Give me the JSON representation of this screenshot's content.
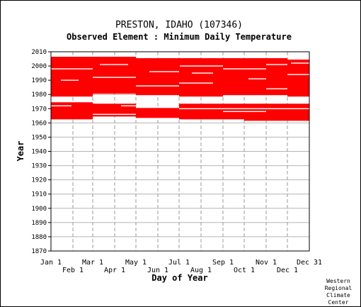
{
  "chart_data": {
    "type": "heatmap",
    "title": "PRESTON, IDAHO   (107346)",
    "subtitle": "Observed Element : Minimum Daily Temperature",
    "xlabel": "Day of Year",
    "ylabel": "Year",
    "xlim": [
      1,
      366
    ],
    "ylim": [
      1870,
      2010
    ],
    "y_ticks": [
      1870,
      1880,
      1890,
      1900,
      1910,
      1920,
      1930,
      1940,
      1950,
      1960,
      1970,
      1980,
      1990,
      2000,
      2010
    ],
    "x_ticks_upper": [
      {
        "label": "Jan 1",
        "day": 1
      },
      {
        "label": "Mar 1",
        "day": 60
      },
      {
        "label": "May 1",
        "day": 121
      },
      {
        "label": "Jul 1",
        "day": 182
      },
      {
        "label": "Sep 1",
        "day": 244
      },
      {
        "label": "Nov 1",
        "day": 305
      },
      {
        "label": "Dec 31",
        "day": 366
      }
    ],
    "x_ticks_lower": [
      {
        "label": "Feb 1",
        "day": 32
      },
      {
        "label": "Apr 1",
        "day": 91
      },
      {
        "label": "Jun 1",
        "day": 152
      },
      {
        "label": "Aug 1",
        "day": 213
      },
      {
        "label": "Oct 1",
        "day": 274
      },
      {
        "label": "Dec 1",
        "day": 335
      }
    ],
    "grid": true,
    "data_color": "#ff0000",
    "blocks": [
      {
        "day_start": 1,
        "day_end": 60,
        "year_start": 1963,
        "year_end": 1974
      },
      {
        "day_start": 60,
        "day_end": 121,
        "year_start": 1965,
        "year_end": 1973
      },
      {
        "day_start": 121,
        "day_end": 182,
        "year_start": 1964,
        "year_end": 1970
      },
      {
        "day_start": 182,
        "day_end": 274,
        "year_start": 1963,
        "year_end": 1973
      },
      {
        "day_start": 274,
        "day_end": 366,
        "year_start": 1962,
        "year_end": 1973
      },
      {
        "day_start": 1,
        "day_end": 60,
        "year_start": 1979,
        "year_end": 2006
      },
      {
        "day_start": 60,
        "day_end": 121,
        "year_start": 1981,
        "year_end": 2006
      },
      {
        "day_start": 121,
        "day_end": 182,
        "year_start": 1980,
        "year_end": 2005
      },
      {
        "day_start": 182,
        "day_end": 244,
        "year_start": 1979,
        "year_end": 2005
      },
      {
        "day_start": 244,
        "day_end": 305,
        "year_start": 1980,
        "year_end": 2005
      },
      {
        "day_start": 305,
        "day_end": 335,
        "year_start": 1980,
        "year_end": 2005
      },
      {
        "day_start": 335,
        "day_end": 366,
        "year_start": 1979,
        "year_end": 2004
      }
    ],
    "missing": [
      {
        "day_start": 1,
        "day_end": 60,
        "year": 1998
      },
      {
        "day_start": 15,
        "day_end": 40,
        "year": 1990
      },
      {
        "day_start": 70,
        "day_end": 110,
        "year": 2001
      },
      {
        "day_start": 60,
        "day_end": 121,
        "year": 1992
      },
      {
        "day_start": 121,
        "day_end": 182,
        "year": 1986
      },
      {
        "day_start": 140,
        "day_end": 182,
        "year": 1996
      },
      {
        "day_start": 182,
        "day_end": 230,
        "year": 1988
      },
      {
        "day_start": 200,
        "day_end": 230,
        "year": 1995
      },
      {
        "day_start": 183,
        "day_end": 244,
        "year": 2000
      },
      {
        "day_start": 244,
        "day_end": 305,
        "year": 1998
      },
      {
        "day_start": 280,
        "day_end": 305,
        "year": 1991
      },
      {
        "day_start": 305,
        "day_end": 335,
        "year": 1984
      },
      {
        "day_start": 305,
        "day_end": 335,
        "year": 2001
      },
      {
        "day_start": 335,
        "day_end": 366,
        "year": 1994
      },
      {
        "day_start": 340,
        "day_end": 366,
        "year": 2002
      },
      {
        "day_start": 1,
        "day_end": 30,
        "year": 1972
      },
      {
        "day_start": 60,
        "day_end": 121,
        "year": 1966
      },
      {
        "day_start": 100,
        "day_end": 121,
        "year": 1972
      },
      {
        "day_start": 244,
        "day_end": 305,
        "year": 1968
      },
      {
        "day_start": 182,
        "day_end": 366,
        "year": 1970
      }
    ]
  },
  "credit": [
    "Western",
    "Regional",
    "Climate",
    "Center"
  ]
}
